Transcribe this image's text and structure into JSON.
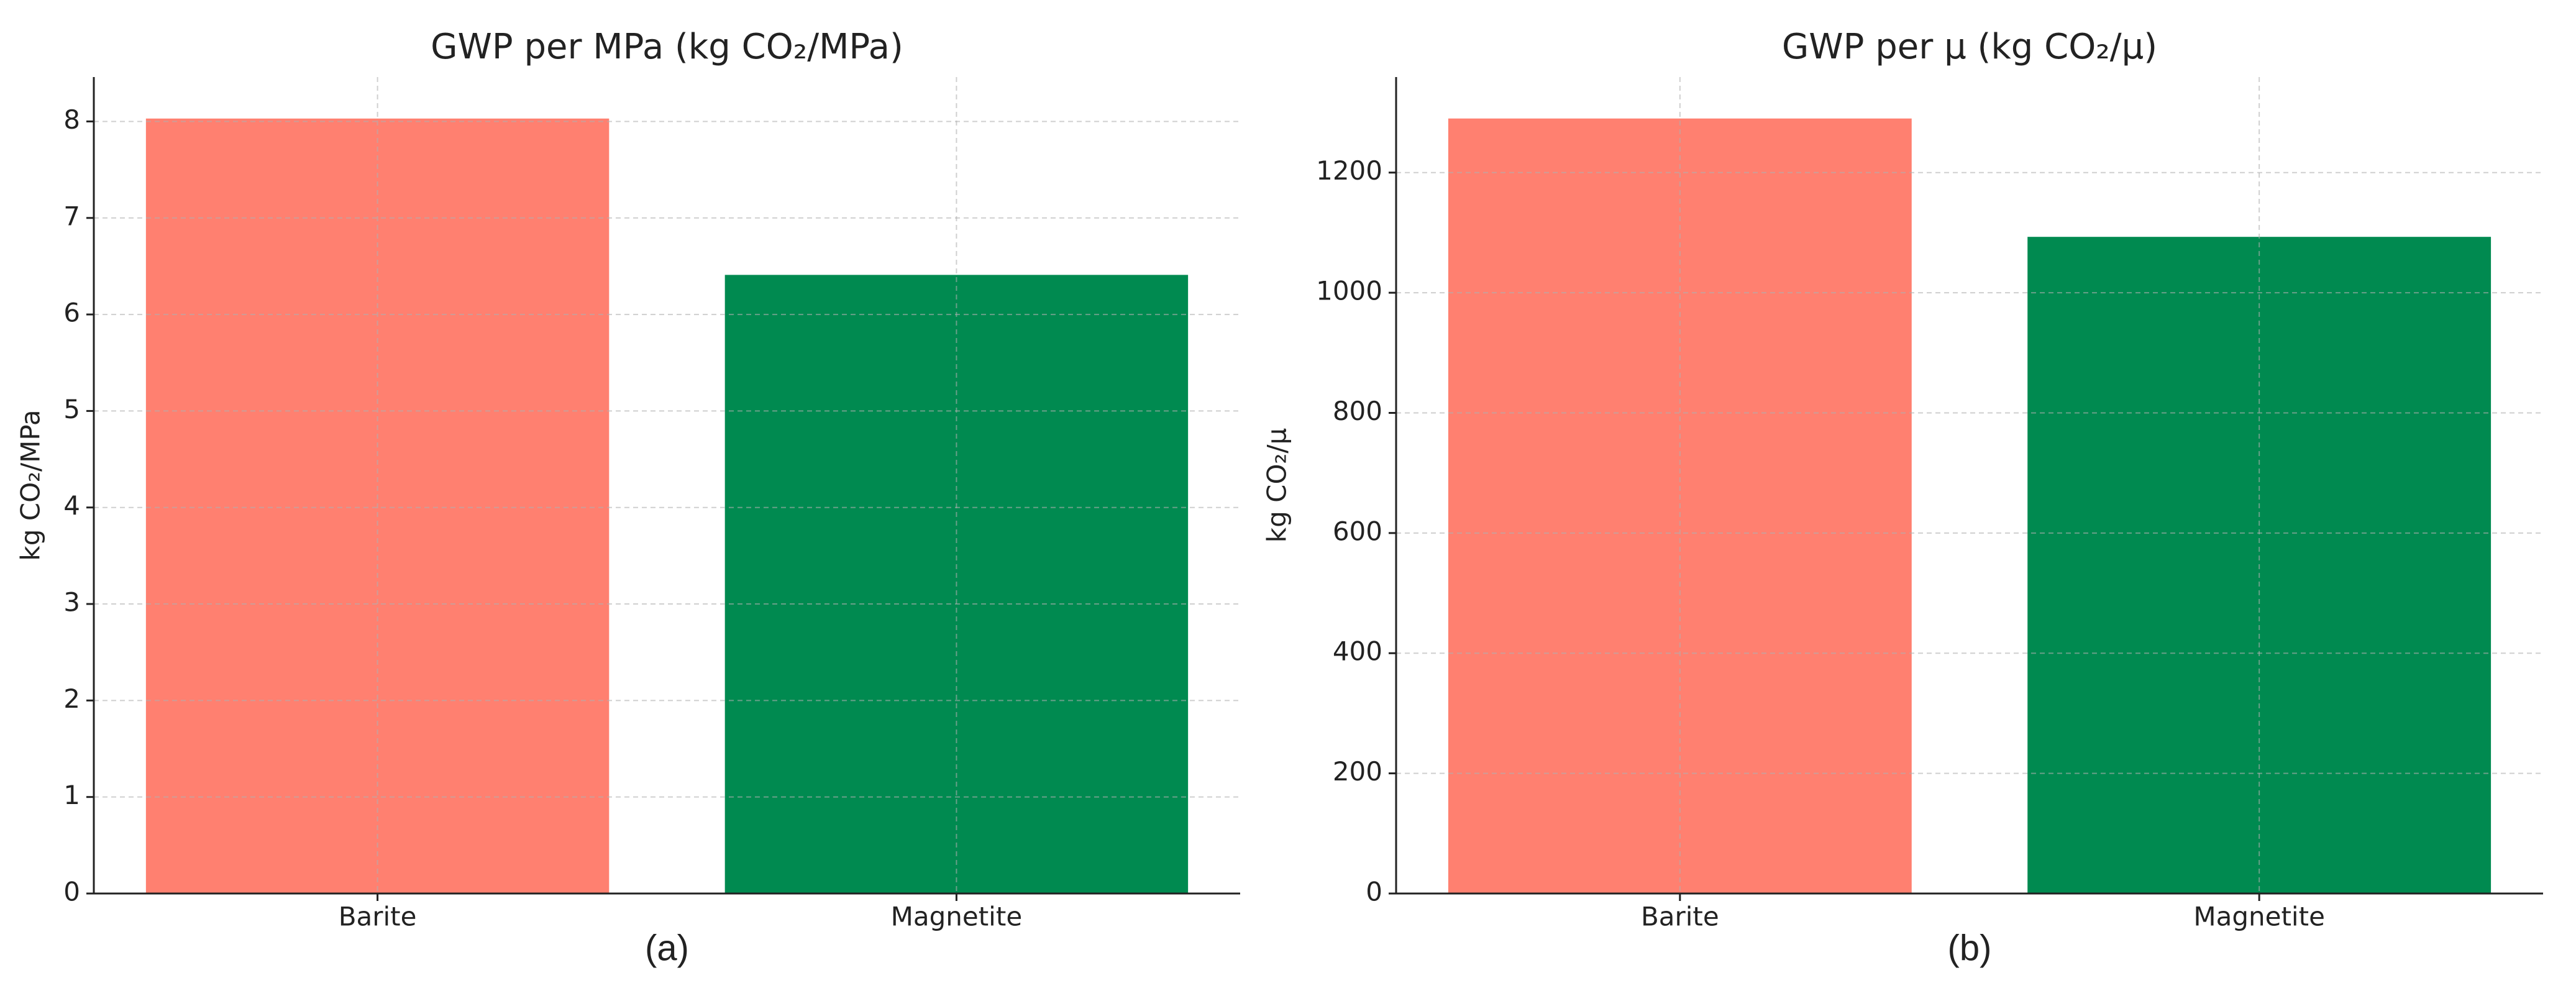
{
  "chart_data": [
    {
      "type": "bar",
      "title": "GWP per MPa (kg CO₂/MPa)",
      "ylabel": "kg CO₂/MPa",
      "label": "(a)",
      "categories": [
        "Barite",
        "Magnetite"
      ],
      "series": [
        {
          "values": [
            8.03,
            6.41
          ],
          "colors": [
            "#ff8070",
            "#008a50"
          ]
        }
      ],
      "ylim": [
        0,
        8.46
      ],
      "yticks": [
        0,
        1,
        2,
        3,
        4,
        5,
        6,
        7,
        8
      ],
      "grid": true
    },
    {
      "type": "bar",
      "title": "GWP per μ (kg CO₂/μ)",
      "ylabel": "kg CO₂/μ",
      "label": "(b)",
      "categories": [
        "Barite",
        "Magnetite"
      ],
      "series": [
        {
          "values": [
            1290,
            1093
          ],
          "colors": [
            "#ff8070",
            "#008a50"
          ]
        }
      ],
      "ylim": [
        0,
        1359
      ],
      "yticks": [
        0,
        200,
        400,
        600,
        800,
        1000,
        1200
      ],
      "grid": true
    }
  ]
}
